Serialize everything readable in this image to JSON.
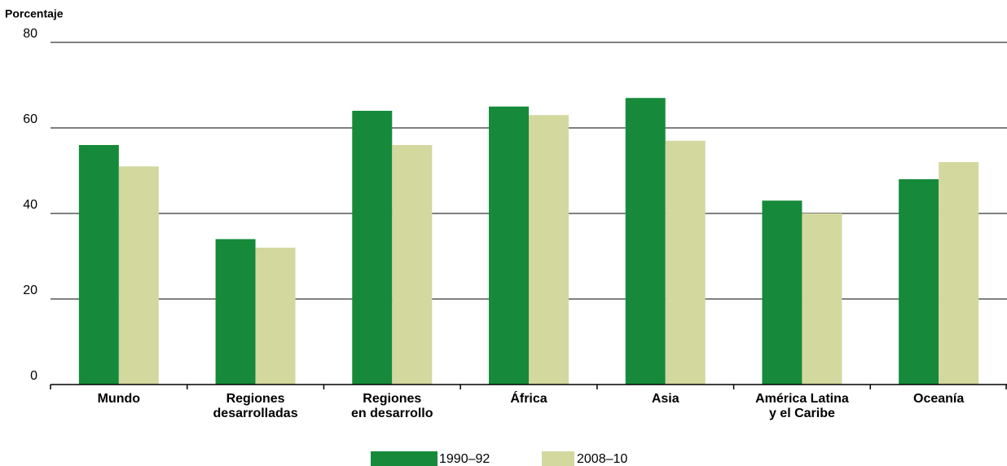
{
  "chart_data": {
    "type": "bar",
    "y_axis_label": "Porcentaje",
    "categories": [
      "Mundo",
      "Regiones\ndesarrolladas",
      "Regiones\nen desarrollo",
      "África",
      "Asia",
      "América Latina\ny el Caribe",
      "Oceanía"
    ],
    "series": [
      {
        "name": "1990–92",
        "color": "#168a3a",
        "values": [
          56,
          34,
          64,
          65,
          67,
          43,
          48
        ]
      },
      {
        "name": "2008–10",
        "color": "#d3d89f",
        "values": [
          51,
          32,
          56,
          63,
          57,
          40,
          52
        ]
      }
    ],
    "ylim": [
      0,
      80
    ],
    "yticks": [
      0,
      20,
      40,
      60,
      80
    ],
    "grid": true
  }
}
